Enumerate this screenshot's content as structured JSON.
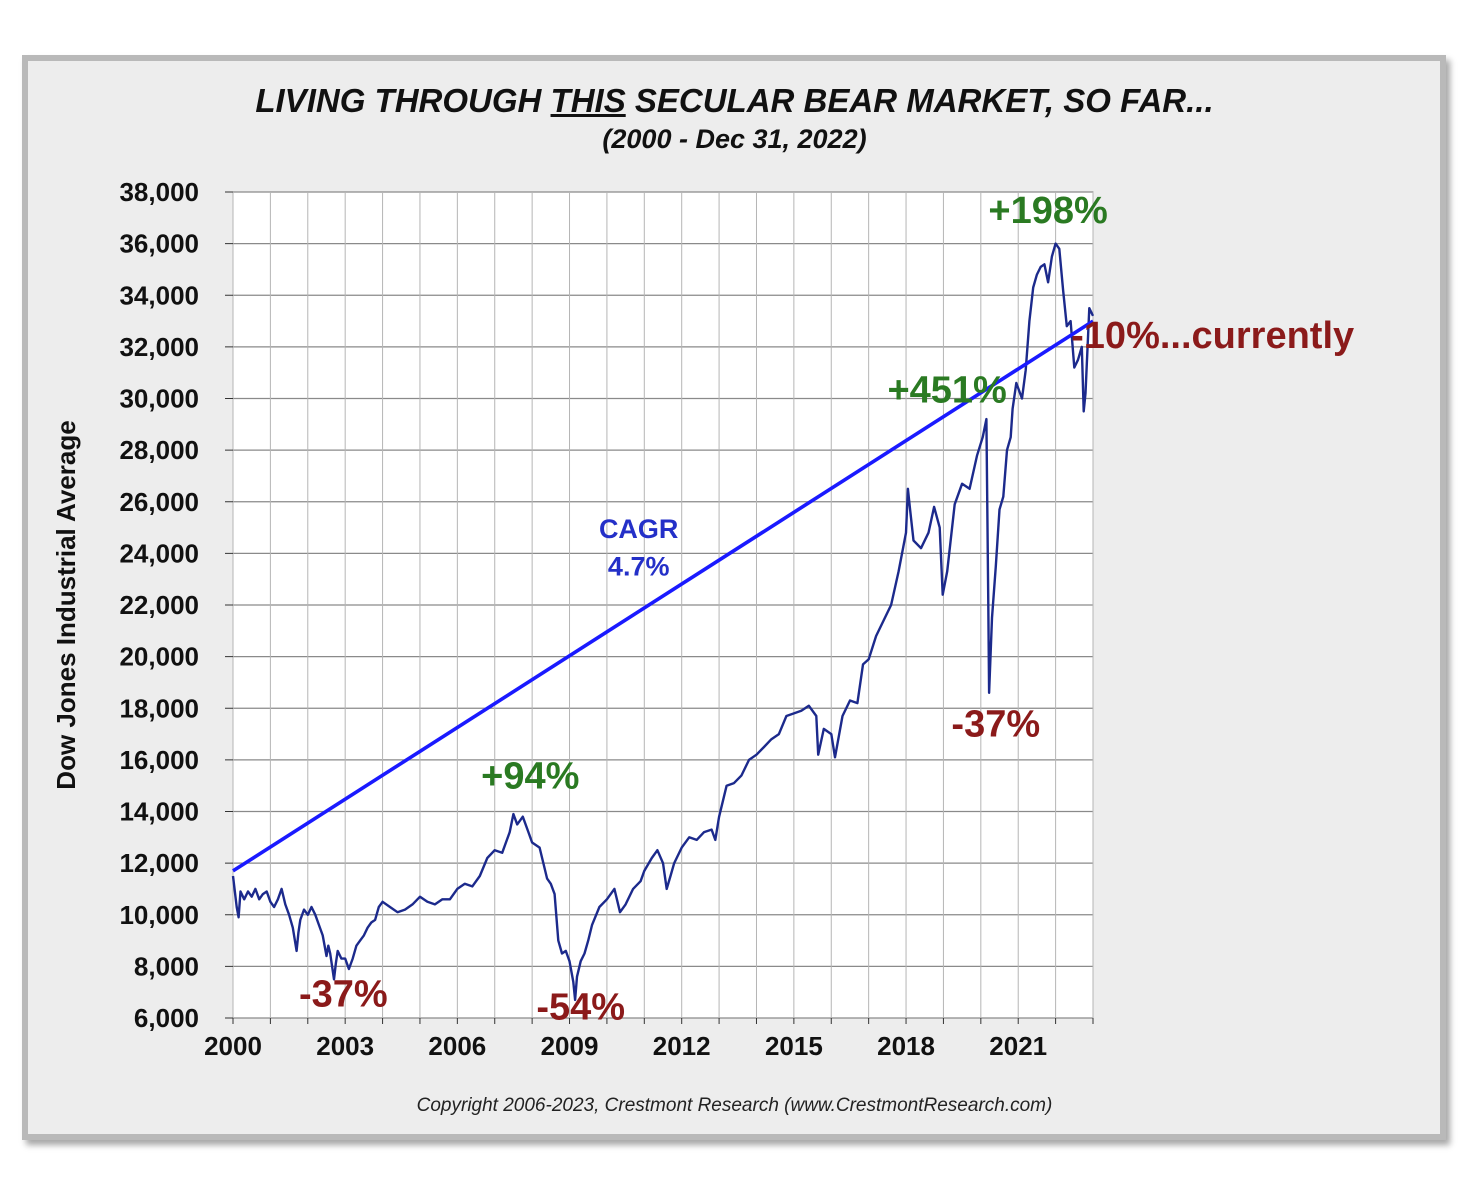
{
  "chart_data": {
    "type": "line",
    "title_parts": [
      "LIVING THROUGH ",
      "THIS",
      " SECULAR BEAR MARKET, SO FAR..."
    ],
    "subtitle": "(2000 - Dec 31, 2022)",
    "ylabel": "Dow Jones Industrial Average",
    "xlabel": "",
    "xlim": [
      2000,
      2023
    ],
    "ylim": [
      6000,
      38000
    ],
    "x_ticks": [
      2000,
      2003,
      2006,
      2009,
      2012,
      2015,
      2018,
      2021
    ],
    "x_tick_labels": [
      "2000",
      "2003",
      "2006",
      "2009",
      "2012",
      "2015",
      "2018",
      "2021"
    ],
    "y_ticks": [
      6000,
      8000,
      10000,
      12000,
      14000,
      16000,
      18000,
      20000,
      22000,
      24000,
      26000,
      28000,
      30000,
      32000,
      34000,
      36000,
      38000
    ],
    "y_tick_labels": [
      "6,000",
      "8,000",
      "10,000",
      "12,000",
      "14,000",
      "16,000",
      "18,000",
      "20,000",
      "22,000",
      "24,000",
      "26,000",
      "28,000",
      "30,000",
      "32,000",
      "34,000",
      "36,000",
      "38,000"
    ],
    "grid": true,
    "series": [
      {
        "color": "#1c2a8c",
        "x": [
          2000.0,
          2000.1,
          2000.15,
          2000.2,
          2000.3,
          2000.4,
          2000.5,
          2000.6,
          2000.7,
          2000.8,
          2000.9,
          2001.0,
          2001.1,
          2001.2,
          2001.3,
          2001.4,
          2001.5,
          2001.6,
          2001.7,
          2001.75,
          2001.8,
          2001.9,
          2002.0,
          2002.1,
          2002.2,
          2002.3,
          2002.4,
          2002.5,
          2002.55,
          2002.6,
          2002.7,
          2002.75,
          2002.8,
          2002.9,
          2003.0,
          2003.1,
          2003.2,
          2003.3,
          2003.4,
          2003.5,
          2003.6,
          2003.7,
          2003.8,
          2003.9,
          2004.0,
          2004.2,
          2004.4,
          2004.6,
          2004.8,
          2005.0,
          2005.2,
          2005.4,
          2005.6,
          2005.8,
          2006.0,
          2006.2,
          2006.4,
          2006.6,
          2006.8,
          2007.0,
          2007.2,
          2007.4,
          2007.5,
          2007.6,
          2007.75,
          2007.9,
          2008.0,
          2008.2,
          2008.4,
          2008.5,
          2008.6,
          2008.7,
          2008.8,
          2008.9,
          2009.0,
          2009.1,
          2009.15,
          2009.2,
          2009.3,
          2009.4,
          2009.5,
          2009.6,
          2009.8,
          2010.0,
          2010.2,
          2010.35,
          2010.5,
          2010.7,
          2010.9,
          2011.0,
          2011.2,
          2011.35,
          2011.5,
          2011.6,
          2011.7,
          2011.8,
          2012.0,
          2012.2,
          2012.4,
          2012.6,
          2012.8,
          2012.9,
          2013.0,
          2013.2,
          2013.4,
          2013.6,
          2013.8,
          2014.0,
          2014.2,
          2014.4,
          2014.6,
          2014.8,
          2015.0,
          2015.2,
          2015.4,
          2015.6,
          2015.65,
          2015.8,
          2016.0,
          2016.1,
          2016.3,
          2016.5,
          2016.7,
          2016.85,
          2017.0,
          2017.2,
          2017.4,
          2017.6,
          2017.8,
          2018.0,
          2018.05,
          2018.1,
          2018.2,
          2018.4,
          2018.6,
          2018.75,
          2018.9,
          2018.98,
          2019.1,
          2019.3,
          2019.5,
          2019.7,
          2019.9,
          2020.05,
          2020.15,
          2020.2,
          2020.22,
          2020.3,
          2020.4,
          2020.5,
          2020.6,
          2020.7,
          2020.8,
          2020.85,
          2020.95,
          2021.1,
          2021.2,
          2021.3,
          2021.4,
          2021.5,
          2021.6,
          2021.7,
          2021.8,
          2021.9,
          2022.0,
          2022.1,
          2022.2,
          2022.3,
          2022.4,
          2022.5,
          2022.6,
          2022.7,
          2022.75,
          2022.8,
          2022.9,
          2023.0
        ],
        "y": [
          11500,
          10300,
          9900,
          10900,
          10600,
          10900,
          10700,
          11000,
          10600,
          10800,
          10900,
          10500,
          10300,
          10600,
          11000,
          10400,
          10000,
          9500,
          8600,
          9300,
          9800,
          10200,
          10000,
          10300,
          10000,
          9600,
          9200,
          8400,
          8800,
          8500,
          7500,
          8100,
          8600,
          8300,
          8300,
          7900,
          8300,
          8800,
          9000,
          9200,
          9500,
          9700,
          9800,
          10300,
          10500,
          10300,
          10100,
          10200,
          10400,
          10700,
          10500,
          10400,
          10600,
          10600,
          11000,
          11200,
          11100,
          11500,
          12200,
          12500,
          12400,
          13200,
          13900,
          13500,
          13800,
          13200,
          12800,
          12600,
          11400,
          11200,
          10800,
          9000,
          8500,
          8600,
          8200,
          7400,
          6700,
          7600,
          8200,
          8500,
          9000,
          9600,
          10300,
          10600,
          11000,
          10100,
          10400,
          11000,
          11300,
          11700,
          12200,
          12500,
          12000,
          11000,
          11500,
          12000,
          12600,
          13000,
          12900,
          13200,
          13300,
          12900,
          13800,
          15000,
          15100,
          15400,
          16000,
          16200,
          16500,
          16800,
          17000,
          17700,
          17800,
          17900,
          18100,
          17700,
          16200,
          17200,
          17000,
          16100,
          17700,
          18300,
          18200,
          19700,
          19900,
          20800,
          21400,
          22000,
          23300,
          24800,
          26500,
          25800,
          24500,
          24200,
          24800,
          25800,
          25000,
          22400,
          23300,
          25900,
          26700,
          26500,
          27800,
          28500,
          29200,
          22000,
          18600,
          21500,
          23500,
          25700,
          26200,
          28000,
          28500,
          29600,
          30600,
          30000,
          31100,
          33000,
          34300,
          34800,
          35100,
          35200,
          34500,
          35500,
          36000,
          35800,
          34200,
          32800,
          33000,
          31200,
          31500,
          32000,
          29500,
          30200,
          33500,
          33200
        ]
      },
      {
        "name": "CAGR",
        "color": "#1a1aff",
        "x": [
          2000.0,
          2023.0
        ],
        "y": [
          11700,
          33000
        ]
      }
    ],
    "annotations": [
      {
        "text": "CAGR",
        "x": 2010.85,
        "y": 24600,
        "color": "#2430c8"
      },
      {
        "text": "4.7%",
        "x": 2010.85,
        "y": 23150,
        "color": "#2430c8"
      },
      {
        "text": "-37%",
        "x": 2002.95,
        "y": 6450,
        "color": "#8b1a1a"
      },
      {
        "text": "+94%",
        "x": 2007.95,
        "y": 14900,
        "color": "#2a7a22"
      },
      {
        "text": "-54%",
        "x": 2009.3,
        "y": 5950,
        "color": "#8b1a1a"
      },
      {
        "text": "-37%",
        "x": 2020.4,
        "y": 16900,
        "color": "#8b1a1a"
      },
      {
        "text": "+451%",
        "x": 2019.1,
        "y": 29850,
        "color": "#2a7a22"
      },
      {
        "text": "+198%",
        "x": 2021.8,
        "y": 36800,
        "color": "#2a7a22"
      },
      {
        "text": "-10%...currently",
        "x": 2026.2,
        "y": 31950,
        "color": "#8b1a1a"
      }
    ]
  },
  "footer": {
    "copyright": "Copyright 2006-2023, Crestmont Research (www.CrestmontResearch.com)"
  }
}
